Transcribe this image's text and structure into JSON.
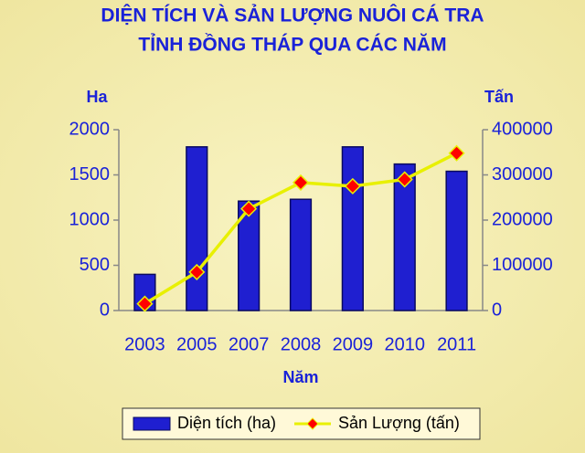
{
  "chart_data": {
    "type": "combo",
    "title": [
      "DIỆN TÍCH VÀ SẢN LƯỢNG NUÔI CÁ TRA",
      "TỈNH ĐỒNG THÁP QUA CÁC NĂM"
    ],
    "y_label": "Ha",
    "y2_label": "Tấn",
    "x_label": "Năm",
    "categories": [
      "2003",
      "2005",
      "2007",
      "2008",
      "2009",
      "2010",
      "2011"
    ],
    "series": [
      {
        "name": "Diện tích (ha)",
        "type": "bar",
        "color": "#1f1fd0",
        "values": [
          400,
          1810,
          1210,
          1230,
          1810,
          1620,
          1540
        ]
      },
      {
        "name": "Sản Lượng (tấn)",
        "type": "line",
        "axis": "y2",
        "color": "#e8f000",
        "marker_color": "#ff0000",
        "values": [
          15000,
          85000,
          225000,
          283000,
          275000,
          290000,
          348000
        ]
      }
    ],
    "ylim": [
      0,
      2000
    ],
    "yticks": [
      0,
      500,
      1000,
      1500,
      2000
    ],
    "y2lim": [
      0,
      400000
    ],
    "y2ticks": [
      0,
      100000,
      200000,
      300000,
      400000
    ],
    "grid": false
  }
}
